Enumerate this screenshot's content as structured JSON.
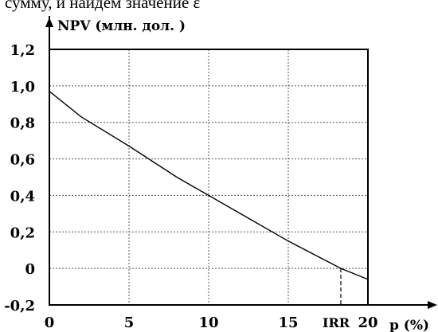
{
  "header_text": "сумму, и найдем значение ε",
  "chart_data": {
    "type": "line",
    "ylabel": "NPV (млн. дол. )",
    "xlabel": "p (%)",
    "xlim": [
      0,
      20
    ],
    "ylim": [
      -0.2,
      1.2
    ],
    "grid": true,
    "x_ticks": [
      {
        "value": 0,
        "label": "0"
      },
      {
        "value": 5,
        "label": "5"
      },
      {
        "value": 10,
        "label": "10"
      },
      {
        "value": 15,
        "label": "15"
      },
      {
        "value": 20,
        "label": "20"
      }
    ],
    "y_ticks": [
      {
        "value": 1.2,
        "label": "1,2"
      },
      {
        "value": 1.0,
        "label": "1,0"
      },
      {
        "value": 0.8,
        "label": "0,8"
      },
      {
        "value": 0.6,
        "label": "0,6"
      },
      {
        "value": 0.4,
        "label": "0,4"
      },
      {
        "value": 0.2,
        "label": "0,2"
      },
      {
        "value": 0,
        "label": "0"
      },
      {
        "value": -0.2,
        "label": "-0,2"
      }
    ],
    "series": [
      {
        "x": [
          0,
          2,
          5,
          8,
          10,
          12,
          15,
          18.3,
          20
        ],
        "y": [
          0.97,
          0.83,
          0.67,
          0.5,
          0.4,
          0.3,
          0.15,
          0,
          -0.06
        ]
      }
    ],
    "annotations": [
      {
        "label": "IRR",
        "x": 18.3
      }
    ],
    "colors": {
      "line": "#000000",
      "grid": "#555555"
    }
  }
}
